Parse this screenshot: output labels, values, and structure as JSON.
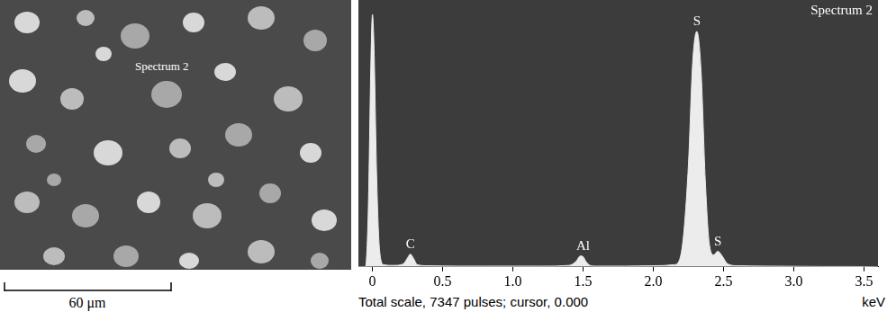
{
  "image": {
    "label": "Spectrum 2",
    "scale_bar": "60 μm"
  },
  "chart_data": {
    "type": "line",
    "title": "Spectrum 2",
    "x_label": "keV",
    "caption": "Total scale, 7347 pulses; cursor, 0.000",
    "x": [
      -0.1,
      -0.05,
      -0.03,
      -0.01,
      0.0,
      0.01,
      0.03,
      0.05,
      0.08,
      0.15,
      0.22,
      0.25,
      0.27,
      0.29,
      0.32,
      0.4,
      0.6,
      0.8,
      1.0,
      1.2,
      1.4,
      1.45,
      1.48,
      1.5,
      1.52,
      1.55,
      1.6,
      1.8,
      2.0,
      2.15,
      2.2,
      2.25,
      2.28,
      2.31,
      2.34,
      2.37,
      2.4,
      2.43,
      2.46,
      2.49,
      2.53,
      2.6,
      2.8,
      3.0,
      3.2,
      3.4,
      3.6
    ],
    "values": [
      0,
      0,
      1500,
      5800,
      6950,
      6200,
      2500,
      500,
      60,
      40,
      80,
      250,
      350,
      250,
      60,
      30,
      20,
      20,
      20,
      20,
      40,
      150,
      300,
      280,
      150,
      40,
      20,
      20,
      30,
      60,
      400,
      2800,
      5600,
      6480,
      5400,
      2400,
      600,
      330,
      430,
      300,
      80,
      30,
      20,
      15,
      10,
      10,
      0
    ],
    "color": "#ececec",
    "xlim": [
      -0.1,
      3.6
    ],
    "xticks": [
      0,
      0.5,
      {
        "value": 1,
        "label": "1.0"
      },
      1.5,
      {
        "value": 2,
        "label": "2.0"
      },
      2.5,
      {
        "value": 3,
        "label": "3.0"
      },
      3.5
    ],
    "ylim": [
      0,
      7347
    ],
    "tick_labels": "x",
    "grid": false,
    "annotations": [
      {
        "text": "C",
        "x": 0.27,
        "y": 350
      },
      {
        "text": "Al",
        "x": 1.5,
        "y": 300
      },
      {
        "text": "S",
        "x": 2.31,
        "y": 6480
      },
      {
        "text": "S",
        "x": 2.46,
        "y": 430
      }
    ]
  }
}
